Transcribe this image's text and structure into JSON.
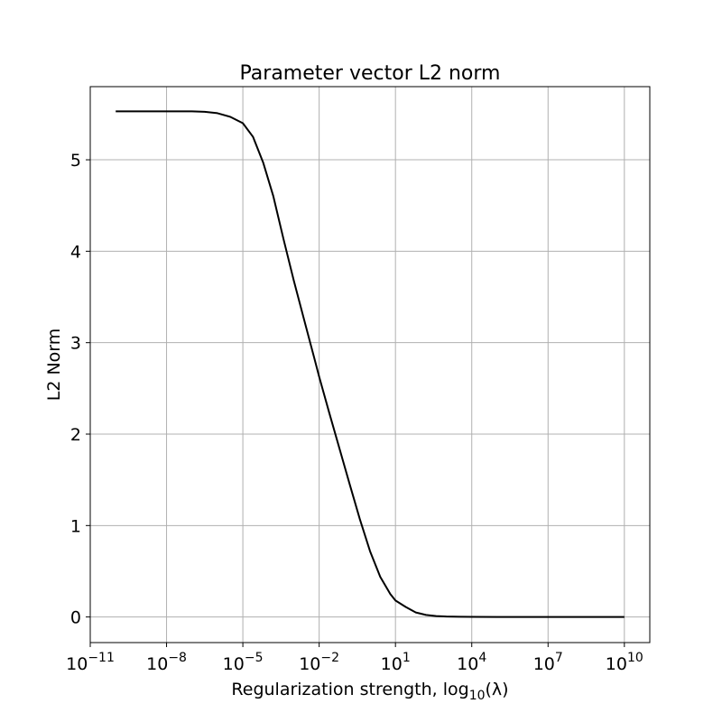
{
  "chart_data": {
    "type": "line",
    "title": "Parameter vector L2 norm",
    "xlabel_prefix": "Regularization strength, log",
    "xlabel_sub": "10",
    "xlabel_suffix": "(λ)",
    "ylabel": "L2 Norm",
    "xscale": "log",
    "xlim": [
      -11,
      11
    ],
    "ylim": [
      -0.28,
      5.8
    ],
    "grid": true,
    "colors": {
      "line": "#000000",
      "grid": "#b0b0b0"
    },
    "x_ticks": [
      {
        "value": -11,
        "base": "10",
        "exp": "−11"
      },
      {
        "value": -8,
        "base": "10",
        "exp": "−8"
      },
      {
        "value": -5,
        "base": "10",
        "exp": "−5"
      },
      {
        "value": -2,
        "base": "10",
        "exp": "−2"
      },
      {
        "value": 1,
        "base": "10",
        "exp": "1"
      },
      {
        "value": 4,
        "base": "10",
        "exp": "4"
      },
      {
        "value": 7,
        "base": "10",
        "exp": "7"
      },
      {
        "value": 10,
        "base": "10",
        "exp": "10"
      }
    ],
    "y_ticks": [
      0,
      1,
      2,
      3,
      4,
      5
    ],
    "series": [
      {
        "x": [
          -10,
          -9,
          -8,
          -7,
          -6.5,
          -6,
          -5.5,
          -5,
          -4.6,
          -4.2,
          -3.8,
          -3.4,
          -3,
          -2.6,
          -2.2,
          -2,
          -1.6,
          -1.2,
          -0.8,
          -0.4,
          0,
          0.4,
          0.8,
          1,
          1.4,
          1.8,
          2.2,
          2.6,
          3,
          3.5,
          4,
          5,
          7,
          10
        ],
        "y": [
          5.53,
          5.53,
          5.53,
          5.53,
          5.525,
          5.51,
          5.47,
          5.4,
          5.25,
          4.97,
          4.6,
          4.13,
          3.68,
          3.26,
          2.84,
          2.63,
          2.23,
          1.84,
          1.45,
          1.07,
          0.72,
          0.44,
          0.25,
          0.18,
          0.11,
          0.05,
          0.022,
          0.01,
          0.005,
          0.002,
          0.001,
          0.0,
          0.0,
          0.0
        ]
      }
    ]
  }
}
